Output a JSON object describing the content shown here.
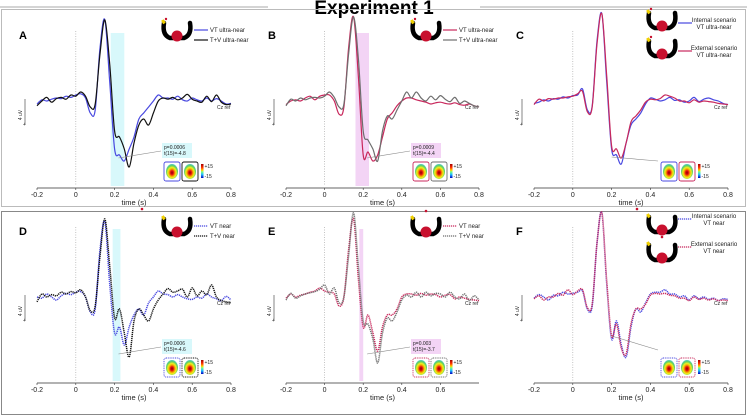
{
  "title": "Experiment 1",
  "colors": {
    "blue": "#4848e0",
    "black": "#111111",
    "crimson": "#c8285c",
    "grey": "#6e6e6e",
    "cyan_band": "#d8f8fb",
    "pink_band": "#f3d4f5"
  },
  "common": {
    "xlabel": "time (s)",
    "scale_label": "4 uV",
    "scale_sign": "+",
    "ref_label": "Cz ref",
    "cbar_max": "+15",
    "cbar_min": "-15"
  },
  "chart_data": [
    {
      "panel": "A",
      "type": "line",
      "xlabel": "time (s)",
      "xlim": [
        -0.2,
        0.8
      ],
      "xticks": [
        "-0.2",
        "0",
        "0.2",
        "0.4",
        "0.6",
        "0.8"
      ],
      "ylabel": "4 uV",
      "band": {
        "range": [
          0.18,
          0.25
        ],
        "color": "cyan"
      },
      "stats": [
        "p=0.0006",
        "t(15)=-4.8"
      ],
      "legend_style": "pair",
      "series": [
        {
          "name": "VT ultra-near",
          "color": "blue",
          "dash": false,
          "values": [
            0.5,
            -0.2,
            0,
            -0.3,
            -0.5,
            -0.4,
            -0.8,
            -0.6,
            -1,
            -1.2,
            -0.5,
            2,
            1.5,
            -9,
            -13.5,
            -3,
            8,
            9,
            10,
            8,
            6,
            3,
            2,
            1,
            0,
            -1,
            -0.5,
            -0.5,
            -0.3,
            -0.8,
            -0.2,
            0,
            -0.5,
            -0.2,
            0,
            -0.5,
            0,
            -0.4,
            0,
            0.5,
            0.4
          ]
        },
        {
          "name": "T+V ultra-near",
          "color": "black",
          "dash": false,
          "values": [
            0.8,
            0,
            -0.6,
            0.2,
            -0.4,
            -0.6,
            -0.3,
            -1,
            -0.8,
            -1.5,
            -0.8,
            1,
            0.5,
            -8,
            -13.5,
            -6,
            5,
            6,
            8,
            11,
            7,
            4,
            3,
            4,
            2,
            0,
            -0.5,
            -0.3,
            -0.6,
            -0.2,
            -0.5,
            -1.1,
            -0.3,
            0,
            0.2,
            -0.8,
            0.1,
            -1,
            0.2,
            0.6,
            0.5
          ]
        }
      ]
    },
    {
      "panel": "B",
      "type": "line",
      "xlabel": "time (s)",
      "xlim": [
        -0.2,
        0.8
      ],
      "xticks": [
        "-0.2",
        "0",
        "0.2",
        "0.4",
        "0.6",
        "0.8"
      ],
      "ylabel": "4 uV",
      "band": {
        "range": [
          0.16,
          0.23
        ],
        "color": "pink"
      },
      "stats": [
        "p=0.0009",
        "t(15)=-4.4"
      ],
      "legend_style": "pair",
      "series": [
        {
          "name": "VT ultra-near",
          "color": "crimson",
          "dash": false,
          "values": [
            0.6,
            0,
            -0.2,
            0,
            -0.5,
            -0.8,
            -0.2,
            -0.8,
            -1,
            -1,
            0,
            2.2,
            1,
            -9,
            -14,
            -4,
            9,
            8.5,
            10,
            9,
            6,
            3,
            2,
            0.8,
            0,
            -0.5,
            -0.5,
            -0.2,
            0,
            0.2,
            0.5,
            0.3,
            0.2,
            0.4,
            0.5,
            0.3,
            0.6,
            0.7,
            0.5,
            0.8,
            1
          ]
        },
        {
          "name": "T+V ultra-near",
          "color": "grey",
          "dash": false,
          "values": [
            0.8,
            -0.3,
            0,
            -0.5,
            -0.2,
            -0.5,
            -0.6,
            -0.5,
            -0.8,
            -1.5,
            -0.6,
            1,
            0.5,
            -8,
            -14,
            -7,
            5,
            6.5,
            8,
            10,
            5,
            2.5,
            3,
            1.5,
            0,
            -1.5,
            -0.5,
            -1.5,
            -0.5,
            0,
            -0.8,
            -0.2,
            -0.9,
            -0.3,
            0.1,
            -0.6,
            0.4,
            0,
            0.4,
            0.8,
            1
          ]
        }
      ]
    },
    {
      "panel": "C",
      "type": "line",
      "xlabel": "time (s)",
      "xlim": [
        -0.2,
        0.8
      ],
      "xticks": [
        "-0.2",
        "0",
        "0.2",
        "0.4",
        "0.6",
        "0.8"
      ],
      "ylabel": "4 uV",
      "band": null,
      "stats": null,
      "legend_style": "scenario",
      "series": [
        {
          "name": "Internal scenario VT ultra-near",
          "color": "blue",
          "dash": false,
          "values": [
            0.4,
            0.2,
            -0.2,
            0,
            -0.4,
            -0.3,
            -0.7,
            -0.5,
            -0.9,
            -1,
            -2,
            1.5,
            0.8,
            -10,
            -14.5,
            -3,
            8,
            9,
            10.5,
            7,
            4,
            3,
            2,
            0.5,
            -0.5,
            -0.3,
            0,
            -0.2,
            -0.6,
            -0.1,
            -0.2,
            0.2,
            0,
            -0.6,
            0.1,
            -0.3,
            -0.5,
            -0.2,
            0,
            0.4,
            0.6
          ]
        },
        {
          "name": "External scenario VT ultra-near",
          "color": "crimson",
          "dash": false,
          "values": [
            0.6,
            -0.3,
            0,
            -0.4,
            -0.3,
            -0.5,
            -0.5,
            -0.7,
            -0.8,
            -1.2,
            -1.6,
            1.8,
            1,
            -9.5,
            -14.5,
            -4,
            7.5,
            8,
            9.5,
            7,
            3.5,
            2.5,
            1.5,
            0.2,
            -0.3,
            -0.2,
            -0.4,
            -1,
            -0.8,
            -0.5,
            0,
            0,
            0.3,
            -0.2,
            0.2,
            0,
            0.1,
            0.2,
            0.4,
            0.5,
            0.6
          ]
        }
      ]
    },
    {
      "panel": "D",
      "type": "line",
      "xlabel": "time (s)",
      "xlim": [
        -0.2,
        0.8
      ],
      "xticks": [
        "-0.2",
        "0",
        "0.2",
        "0.4",
        "0.6",
        "0.8"
      ],
      "ylabel": "4 uV",
      "band": {
        "range": [
          0.19,
          0.23
        ],
        "color": "cyan"
      },
      "stats": [
        "p=0.0006",
        "t(15)=-4.6"
      ],
      "legend_style": "pair",
      "series": [
        {
          "name": "VT near",
          "color": "blue",
          "dash": true,
          "values": [
            0,
            0.2,
            -0.5,
            0,
            0.5,
            -0.2,
            -0.6,
            -0.4,
            -0.8,
            -0.9,
            0,
            2.5,
            2,
            -8,
            -12.5,
            -2,
            6,
            5,
            8,
            5,
            3,
            2,
            3,
            1,
            0,
            -1,
            -0.5,
            -0.4,
            0,
            -0.4,
            0,
            0.3,
            0.4,
            0,
            0.2,
            -0.5,
            0,
            0.3,
            0.6,
            -0.1,
            0.5
          ]
        },
        {
          "name": "T+V near",
          "color": "black",
          "dash": true,
          "values": [
            0.8,
            -0.5,
            0,
            -0.4,
            -0.2,
            -0.8,
            -0.5,
            -0.9,
            -0.7,
            -1.2,
            0,
            2.3,
            1.5,
            -7,
            -13,
            -5,
            3.5,
            2,
            6,
            10,
            4,
            2,
            3,
            4,
            2,
            0.5,
            -0.5,
            -1.4,
            -0.8,
            -1,
            -1.3,
            0,
            -1.5,
            -0.2,
            -1,
            -0.4,
            -2,
            0,
            0.6,
            0.8,
            1
          ]
        }
      ]
    },
    {
      "panel": "E",
      "type": "line",
      "xlabel": "time (s)",
      "xlim": [
        -0.2,
        0.8
      ],
      "xticks": [
        "-0.2",
        "0",
        "0.2",
        "0.4",
        "0.6"
      ],
      "ylabel": "4 uV",
      "band": {
        "range": [
          0.18,
          0.2
        ],
        "color": "pink"
      },
      "stats": [
        "p=0.003",
        "t(15)=-3.7"
      ],
      "legend_style": "pair",
      "series": [
        {
          "name": "VT near",
          "color": "crimson",
          "dash": true,
          "values": [
            0.2,
            -0.5,
            0,
            -0.3,
            -0.5,
            -0.8,
            -1,
            -1.5,
            -1,
            -0.8,
            -0.5,
            1.5,
            0,
            -8,
            -13,
            -3,
            5,
            3,
            6,
            9,
            5,
            3,
            3,
            2,
            0,
            -0.5,
            -0.5,
            -0.3,
            -0.6,
            -0.3,
            -0.5,
            -0.4,
            0,
            -0.3,
            -0.4,
            0.3,
            0,
            0.2,
            0.4,
            0.5,
            0.6
          ]
        },
        {
          "name": "T+V near",
          "color": "grey",
          "dash": true,
          "values": [
            0.5,
            -0.6,
            0.2,
            -0.2,
            -0.5,
            -0.7,
            -0.9,
            -1.3,
            -2,
            -0.5,
            -1.5,
            1,
            0,
            -7,
            -14,
            -5,
            4,
            4.5,
            7,
            11,
            6,
            3.5,
            4,
            2.5,
            0.5,
            -0.3,
            0,
            -0.8,
            0,
            -0.8,
            -0.2,
            -0.6,
            -0.5,
            0,
            -0.8,
            0,
            0.3,
            -0.5,
            0.6,
            -0.2,
            0.5
          ]
        }
      ]
    },
    {
      "panel": "F",
      "type": "line",
      "xlabel": "time (s)",
      "xlim": [
        -0.2,
        0.8
      ],
      "xticks": [
        "-0.2",
        "0",
        "0.2",
        "0.4",
        "0.6",
        "0.8"
      ],
      "ylabel": "4 uV",
      "band": null,
      "stats": null,
      "legend_style": "scenario",
      "series": [
        {
          "name": "Internal scenario VT near",
          "color": "blue",
          "dash": true,
          "values": [
            0.2,
            -0.4,
            0,
            0.5,
            -0.3,
            -0.2,
            -0.8,
            -0.5,
            -0.6,
            -0.8,
            -1,
            2,
            1.5,
            -9,
            -14,
            -2,
            7,
            4,
            8,
            10,
            5,
            2,
            2.5,
            1,
            -0.5,
            -0.8,
            -0.8,
            -1.2,
            -0.5,
            -0.5,
            0,
            -0.2,
            0.5,
            -0.2,
            0.3,
            0,
            0.4,
            0.2,
            0.6,
            0.3,
            0.4
          ]
        },
        {
          "name": "External scenario VT near",
          "color": "crimson",
          "dash": true,
          "values": [
            0.3,
            -0.2,
            0.5,
            0,
            0,
            -0.6,
            -0.3,
            -1.2,
            -0.4,
            -1,
            -1.2,
            1.8,
            1.2,
            -9,
            -14,
            -2.5,
            6.5,
            4.5,
            8.5,
            9.5,
            4.5,
            2,
            2,
            1.2,
            -0.3,
            -0.6,
            -0.5,
            -0.6,
            -0.3,
            -0.2,
            0.2,
            0.2,
            0.6,
            0,
            0.4,
            0.2,
            0.5,
            0.3,
            0.6,
            0.5,
            0.6
          ]
        }
      ]
    }
  ]
}
